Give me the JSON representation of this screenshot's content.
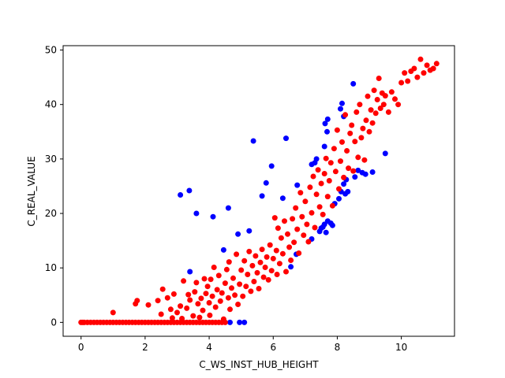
{
  "chart_data": {
    "type": "scatter",
    "xlabel": "C_WS_INST_HUB_HEIGHT",
    "ylabel": "C_REAL_VALUE",
    "xlim": [
      -0.56,
      11.66
    ],
    "ylim": [
      -2.55,
      50.8
    ],
    "xticks": [
      0,
      2,
      4,
      6,
      8,
      10
    ],
    "yticks": [
      0,
      10,
      20,
      30,
      40,
      50
    ],
    "grid": false,
    "series": [
      {
        "color": "#0000ff",
        "points": [
          [
            3.1,
            23.4
          ],
          [
            3.38,
            24.2
          ],
          [
            3.6,
            20.0
          ],
          [
            4.12,
            19.4
          ],
          [
            4.6,
            21.0
          ],
          [
            3.4,
            9.3
          ],
          [
            4.45,
            13.3
          ],
          [
            4.9,
            16.2
          ],
          [
            5.25,
            16.8
          ],
          [
            5.38,
            33.3
          ],
          [
            5.65,
            23.2
          ],
          [
            5.78,
            25.6
          ],
          [
            5.95,
            28.7
          ],
          [
            6.3,
            22.8
          ],
          [
            6.4,
            33.8
          ],
          [
            6.75,
            25.2
          ],
          [
            6.55,
            10.2
          ],
          [
            6.72,
            12.5
          ],
          [
            7.2,
            15.3
          ],
          [
            7.2,
            29.0
          ],
          [
            7.35,
            30.0
          ],
          [
            7.3,
            29.3
          ],
          [
            7.5,
            17.3
          ],
          [
            7.6,
            18.0
          ],
          [
            7.7,
            18.6
          ],
          [
            7.8,
            18.2
          ],
          [
            7.55,
            17.5
          ],
          [
            7.68,
            35.0
          ],
          [
            7.7,
            37.3
          ],
          [
            7.62,
            36.5
          ],
          [
            7.6,
            32.3
          ],
          [
            7.45,
            16.7
          ],
          [
            7.65,
            16.5
          ],
          [
            7.85,
            17.8
          ],
          [
            7.92,
            21.8
          ],
          [
            8.05,
            22.7
          ],
          [
            8.12,
            24.0
          ],
          [
            8.2,
            25.4
          ],
          [
            8.25,
            23.6
          ],
          [
            8.33,
            24.0
          ],
          [
            8.1,
            39.2
          ],
          [
            8.15,
            40.2
          ],
          [
            8.2,
            37.8
          ],
          [
            8.28,
            26.2
          ],
          [
            8.55,
            26.7
          ],
          [
            8.65,
            27.9
          ],
          [
            8.78,
            27.5
          ],
          [
            8.88,
            27.2
          ],
          [
            9.1,
            27.6
          ],
          [
            8.5,
            43.8
          ],
          [
            9.5,
            31.0
          ],
          [
            4.95,
            0.0
          ],
          [
            5.1,
            0.0
          ],
          [
            4.65,
            0.0
          ]
        ]
      },
      {
        "color": "#ff0000",
        "points": [
          [
            0.0,
            0.0
          ],
          [
            0.05,
            0.0
          ],
          [
            0.1,
            0.0
          ],
          [
            0.2,
            0.0
          ],
          [
            0.3,
            0.0
          ],
          [
            0.4,
            0.0
          ],
          [
            0.5,
            0.0
          ],
          [
            0.6,
            0.0
          ],
          [
            0.7,
            0.0
          ],
          [
            0.8,
            0.0
          ],
          [
            0.9,
            0.0
          ],
          [
            1.0,
            0.0
          ],
          [
            1.1,
            0.0
          ],
          [
            1.2,
            0.0
          ],
          [
            1.3,
            0.0
          ],
          [
            1.4,
            0.0
          ],
          [
            1.5,
            0.0
          ],
          [
            1.6,
            0.0
          ],
          [
            1.7,
            0.0
          ],
          [
            1.8,
            0.0
          ],
          [
            1.9,
            0.0
          ],
          [
            2.0,
            0.0
          ],
          [
            2.1,
            0.0
          ],
          [
            2.2,
            0.0
          ],
          [
            2.3,
            0.0
          ],
          [
            2.4,
            0.0
          ],
          [
            2.5,
            0.0
          ],
          [
            2.6,
            0.0
          ],
          [
            2.7,
            0.0
          ],
          [
            2.8,
            0.0
          ],
          [
            2.9,
            0.0
          ],
          [
            3.0,
            0.0
          ],
          [
            3.1,
            0.0
          ],
          [
            3.2,
            0.0
          ],
          [
            3.3,
            0.0
          ],
          [
            3.4,
            0.0
          ],
          [
            3.5,
            0.0
          ],
          [
            3.6,
            0.0
          ],
          [
            3.7,
            0.0
          ],
          [
            3.8,
            0.0
          ],
          [
            3.9,
            0.0
          ],
          [
            4.0,
            0.0
          ],
          [
            4.1,
            0.0
          ],
          [
            4.2,
            0.0
          ],
          [
            4.3,
            0.0
          ],
          [
            4.4,
            0.0
          ],
          [
            4.5,
            0.0
          ],
          [
            1.0,
            1.8
          ],
          [
            1.7,
            3.4
          ],
          [
            1.75,
            4.0
          ],
          [
            2.1,
            3.2
          ],
          [
            2.4,
            4.0
          ],
          [
            2.55,
            6.1
          ],
          [
            2.5,
            1.5
          ],
          [
            2.7,
            4.5
          ],
          [
            2.8,
            2.4
          ],
          [
            2.85,
            0.8
          ],
          [
            2.9,
            5.2
          ],
          [
            3.0,
            1.8
          ],
          [
            3.1,
            3.0
          ],
          [
            3.15,
            0.7
          ],
          [
            3.2,
            7.6
          ],
          [
            3.3,
            2.6
          ],
          [
            3.35,
            5.1
          ],
          [
            3.4,
            4.1
          ],
          [
            3.5,
            1.2
          ],
          [
            3.55,
            5.6
          ],
          [
            3.6,
            7.3
          ],
          [
            3.65,
            3.4
          ],
          [
            3.7,
            0.9
          ],
          [
            3.75,
            4.4
          ],
          [
            3.8,
            2.2
          ],
          [
            3.85,
            8.0
          ],
          [
            3.9,
            5.3
          ],
          [
            3.95,
            6.6
          ],
          [
            4.0,
            3.6
          ],
          [
            4.02,
            1.3
          ],
          [
            4.05,
            7.9
          ],
          [
            4.1,
            4.8
          ],
          [
            4.15,
            10.1
          ],
          [
            4.2,
            2.8
          ],
          [
            4.25,
            6.0
          ],
          [
            4.3,
            8.6
          ],
          [
            4.35,
            3.9
          ],
          [
            4.4,
            5.4
          ],
          [
            4.45,
            0.6
          ],
          [
            4.5,
            7.2
          ],
          [
            4.55,
            9.7
          ],
          [
            4.6,
            4.5
          ],
          [
            4.62,
            11.1
          ],
          [
            4.65,
            2.4
          ],
          [
            4.7,
            6.3
          ],
          [
            4.75,
            8.1
          ],
          [
            4.8,
            5.0
          ],
          [
            4.85,
            12.5
          ],
          [
            4.9,
            3.3
          ],
          [
            4.95,
            7.0
          ],
          [
            5.0,
            9.6
          ],
          [
            5.05,
            4.8
          ],
          [
            5.1,
            11.3
          ],
          [
            5.15,
            6.6
          ],
          [
            5.2,
            8.8
          ],
          [
            5.25,
            13.0
          ],
          [
            5.3,
            5.7
          ],
          [
            5.35,
            10.4
          ],
          [
            5.4,
            7.5
          ],
          [
            5.45,
            12.2
          ],
          [
            5.5,
            9.1
          ],
          [
            5.55,
            6.2
          ],
          [
            5.6,
            11.0
          ],
          [
            5.65,
            13.4
          ],
          [
            5.7,
            8.3
          ],
          [
            5.75,
            10.1
          ],
          [
            5.8,
            12.0
          ],
          [
            5.85,
            7.8
          ],
          [
            5.9,
            14.2
          ],
          [
            5.95,
            9.5
          ],
          [
            6.0,
            11.7
          ],
          [
            6.05,
            19.2
          ],
          [
            6.1,
            13.2
          ],
          [
            6.12,
            8.8
          ],
          [
            6.15,
            17.3
          ],
          [
            6.2,
            10.8
          ],
          [
            6.25,
            15.5
          ],
          [
            6.3,
            12.6
          ],
          [
            6.35,
            18.6
          ],
          [
            6.4,
            9.3
          ],
          [
            6.45,
            16.2
          ],
          [
            6.5,
            13.8
          ],
          [
            6.55,
            11.4
          ],
          [
            6.6,
            19.0
          ],
          [
            6.65,
            14.7
          ],
          [
            6.7,
            21.0
          ],
          [
            6.75,
            17.1
          ],
          [
            6.8,
            12.7
          ],
          [
            6.85,
            23.8
          ],
          [
            6.9,
            19.4
          ],
          [
            6.95,
            16.0
          ],
          [
            7.0,
            22.2
          ],
          [
            7.05,
            18.0
          ],
          [
            7.1,
            14.8
          ],
          [
            7.15,
            24.8
          ],
          [
            7.2,
            20.1
          ],
          [
            7.25,
            26.8
          ],
          [
            7.3,
            17.4
          ],
          [
            7.35,
            23.5
          ],
          [
            7.4,
            28.0
          ],
          [
            7.45,
            21.2
          ],
          [
            7.5,
            25.5
          ],
          [
            7.55,
            19.8
          ],
          [
            7.6,
            27.3
          ],
          [
            7.65,
            30.1
          ],
          [
            7.7,
            23.1
          ],
          [
            7.75,
            26.0
          ],
          [
            7.8,
            29.3
          ],
          [
            7.85,
            21.4
          ],
          [
            7.9,
            31.9
          ],
          [
            7.95,
            27.7
          ],
          [
            8.0,
            35.3
          ],
          [
            8.05,
            24.5
          ],
          [
            8.1,
            29.6
          ],
          [
            8.15,
            33.1
          ],
          [
            8.2,
            26.6
          ],
          [
            8.25,
            38.1
          ],
          [
            8.3,
            31.5
          ],
          [
            8.35,
            28.3
          ],
          [
            8.4,
            34.7
          ],
          [
            8.45,
            36.2
          ],
          [
            8.5,
            27.8
          ],
          [
            8.55,
            33.2
          ],
          [
            8.6,
            38.6
          ],
          [
            8.65,
            30.3
          ],
          [
            8.7,
            40.0
          ],
          [
            8.75,
            33.9
          ],
          [
            8.8,
            35.6
          ],
          [
            8.85,
            29.8
          ],
          [
            8.9,
            37.1
          ],
          [
            8.95,
            41.5
          ],
          [
            9.0,
            35.0
          ],
          [
            9.05,
            39.0
          ],
          [
            9.1,
            36.6
          ],
          [
            9.15,
            42.6
          ],
          [
            9.2,
            38.4
          ],
          [
            9.25,
            40.9
          ],
          [
            9.3,
            44.8
          ],
          [
            9.35,
            39.3
          ],
          [
            9.4,
            42.1
          ],
          [
            9.45,
            40.0
          ],
          [
            9.5,
            41.6
          ],
          [
            9.6,
            38.6
          ],
          [
            9.7,
            42.3
          ],
          [
            9.8,
            41.0
          ],
          [
            9.9,
            40.0
          ],
          [
            10.0,
            44.0
          ],
          [
            10.1,
            45.8
          ],
          [
            10.2,
            44.3
          ],
          [
            10.3,
            46.1
          ],
          [
            10.4,
            46.6
          ],
          [
            10.5,
            45.0
          ],
          [
            10.6,
            48.3
          ],
          [
            10.7,
            45.8
          ],
          [
            10.8,
            47.2
          ],
          [
            10.9,
            46.3
          ],
          [
            11.0,
            46.6
          ],
          [
            11.1,
            47.5
          ]
        ]
      }
    ]
  }
}
